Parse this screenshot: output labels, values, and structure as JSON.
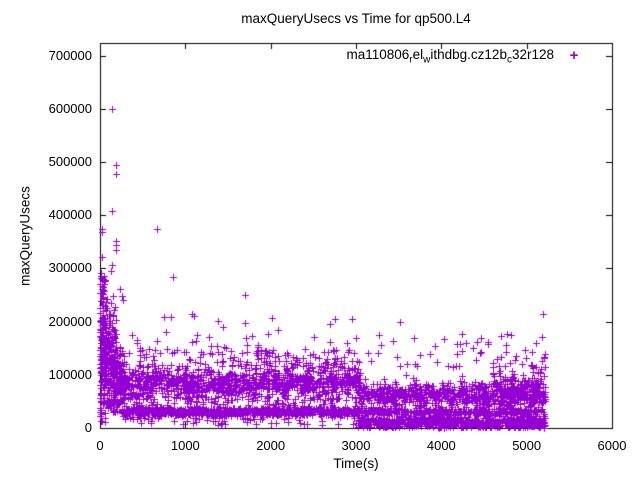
{
  "figure": {
    "background": "#ffffff",
    "frame_color": "#000000"
  },
  "chart_data": {
    "type": "scatter",
    "title": "maxQueryUsecs vs Time for qp500.L4",
    "xlabel": "Time(s)",
    "ylabel": "maxQueryUsecs",
    "xlim": [
      0,
      6000
    ],
    "ylim": [
      0,
      700000
    ],
    "xticks": [
      0,
      1000,
      2000,
      3000,
      4000,
      5000,
      6000
    ],
    "xtick_labels": [
      "0",
      "1000",
      "2000",
      "3000",
      "4000",
      "5000",
      "6000"
    ],
    "yticks": [
      0,
      100000,
      200000,
      300000,
      400000,
      500000,
      600000,
      700000
    ],
    "ytick_labels": [
      "0",
      "100000",
      "200000",
      "300000",
      "400000",
      "500000",
      "600000",
      "700000"
    ],
    "grid": false,
    "marker": "+",
    "marker_color": "#9400d3",
    "legend": {
      "position": "top-right",
      "marker": "+",
      "label_plain": "ma110806_rel_withdbg.cz12b_c32r128",
      "label_segments": [
        {
          "text": "ma110806"
        },
        {
          "text": "r",
          "sub": true
        },
        {
          "text": "el"
        },
        {
          "text": "w",
          "sub": true
        },
        {
          "text": "ithdbg.cz12b"
        },
        {
          "text": "c",
          "sub": true
        },
        {
          "text": "32r128"
        }
      ]
    },
    "seed": 1106,
    "outlier_points": [
      [
        20,
        374000
      ],
      [
        24,
        369000
      ],
      [
        20,
        321000
      ],
      [
        12,
        291000
      ],
      [
        36,
        265000
      ],
      [
        52,
        257000
      ],
      [
        140,
        600000
      ],
      [
        138,
        407000
      ],
      [
        136,
        306000
      ],
      [
        190,
        495000
      ],
      [
        192,
        478000
      ],
      [
        186,
        352000
      ],
      [
        190,
        343000
      ],
      [
        184,
        335000
      ],
      [
        240,
        262000
      ],
      [
        255,
        248000
      ],
      [
        270,
        240000
      ],
      [
        664,
        374000
      ],
      [
        750,
        208000
      ],
      [
        832,
        208000
      ],
      [
        773,
        181000
      ],
      [
        859,
        284000
      ],
      [
        1078,
        215000
      ],
      [
        1100,
        210000
      ],
      [
        1137,
        174000
      ],
      [
        1383,
        201000
      ],
      [
        1445,
        190000
      ],
      [
        1700,
        250000
      ],
      [
        1705,
        198000
      ],
      [
        1712,
        170000
      ],
      [
        1718,
        143000
      ],
      [
        2013,
        207000
      ],
      [
        2090,
        185000
      ],
      [
        2690,
        196000
      ],
      [
        2696,
        161000
      ],
      [
        2750,
        205000
      ],
      [
        2920,
        146000
      ],
      [
        2954,
        204000
      ],
      [
        3513,
        200000
      ],
      [
        3867,
        139000
      ],
      [
        4654,
        130000
      ],
      [
        4982,
        146000
      ],
      [
        4995,
        131000
      ],
      [
        5190,
        215000
      ],
      [
        5210,
        139000
      ],
      [
        5205,
        134000
      ]
    ],
    "dense_bands": [
      {
        "name": "startup-burst-core",
        "t": [
          0,
          60
        ],
        "dist": "uniform",
        "vmin": 3000,
        "vmax": 290000,
        "count": 60
      },
      {
        "name": "startup-burst-heavy",
        "t": [
          0,
          60
        ],
        "dist": "gauss",
        "center": 150000,
        "sd": 60000,
        "clamp": [
          20000,
          300000
        ],
        "count": 90
      },
      {
        "name": "early-burst-high",
        "t": [
          60,
          190
        ],
        "dist": "gauss",
        "center": 140000,
        "sd": 52000,
        "clamp": [
          35000,
          330000
        ],
        "count": 120
      },
      {
        "name": "early-burst-mid",
        "t": [
          60,
          280
        ],
        "dist": "gauss",
        "center": 95000,
        "sd": 30000,
        "clamp": [
          30000,
          260000
        ],
        "count": 110
      },
      {
        "name": "early-burst-low",
        "t": [
          150,
          300
        ],
        "dist": "gauss",
        "center": 80000,
        "sd": 25000,
        "clamp": [
          30000,
          200000
        ],
        "count": 70
      },
      {
        "name": "upper-band",
        "t": [
          250,
          3050
        ],
        "dist": "gauss",
        "center": 84000,
        "sd": 14000,
        "clamp": [
          52000,
          130000
        ],
        "count": 950
      },
      {
        "name": "upper-band-fringe",
        "t": [
          300,
          3000
        ],
        "dist": "uniform",
        "vmin": 108000,
        "vmax": 148000,
        "count": 120
      },
      {
        "name": "upper-band-late",
        "t": [
          3050,
          5215
        ],
        "dist": "gauss",
        "center": 62000,
        "sd": 12000,
        "clamp": [
          36000,
          105000
        ],
        "count": 700
      },
      {
        "name": "late-high-cluster",
        "t": [
          4600,
          5215
        ],
        "dist": "gauss",
        "center": 92000,
        "sd": 16000,
        "clamp": [
          60000,
          150000
        ],
        "count": 70
      },
      {
        "name": "lower-band",
        "t": [
          250,
          3020
        ],
        "dist": "gauss",
        "center": 31000,
        "sd": 3600,
        "clamp": [
          21000,
          44000
        ],
        "count": 1000
      },
      {
        "name": "lower-band-late",
        "t": [
          3020,
          5215
        ],
        "dist": "gauss",
        "center": 30000,
        "sd": 3200,
        "clamp": [
          22000,
          40000
        ],
        "count": 340
      },
      {
        "name": "floor-band-late",
        "t": [
          3020,
          5215
        ],
        "dist": "gauss",
        "center": 10000,
        "sd": 5500,
        "clamp": [
          800,
          24000
        ],
        "count": 640
      },
      {
        "name": "floor-sparse",
        "t": [
          250,
          3020
        ],
        "dist": "uniform",
        "vmin": 6000,
        "vmax": 22000,
        "count": 60
      },
      {
        "name": "gap-sparse",
        "t": [
          250,
          3020
        ],
        "dist": "uniform",
        "vmin": 42000,
        "vmax": 60000,
        "count": 90
      },
      {
        "name": "mid-scatter",
        "t": [
          300,
          5215
        ],
        "dist": "uniform",
        "vmin": 115000,
        "vmax": 178000,
        "count": 95
      }
    ]
  }
}
